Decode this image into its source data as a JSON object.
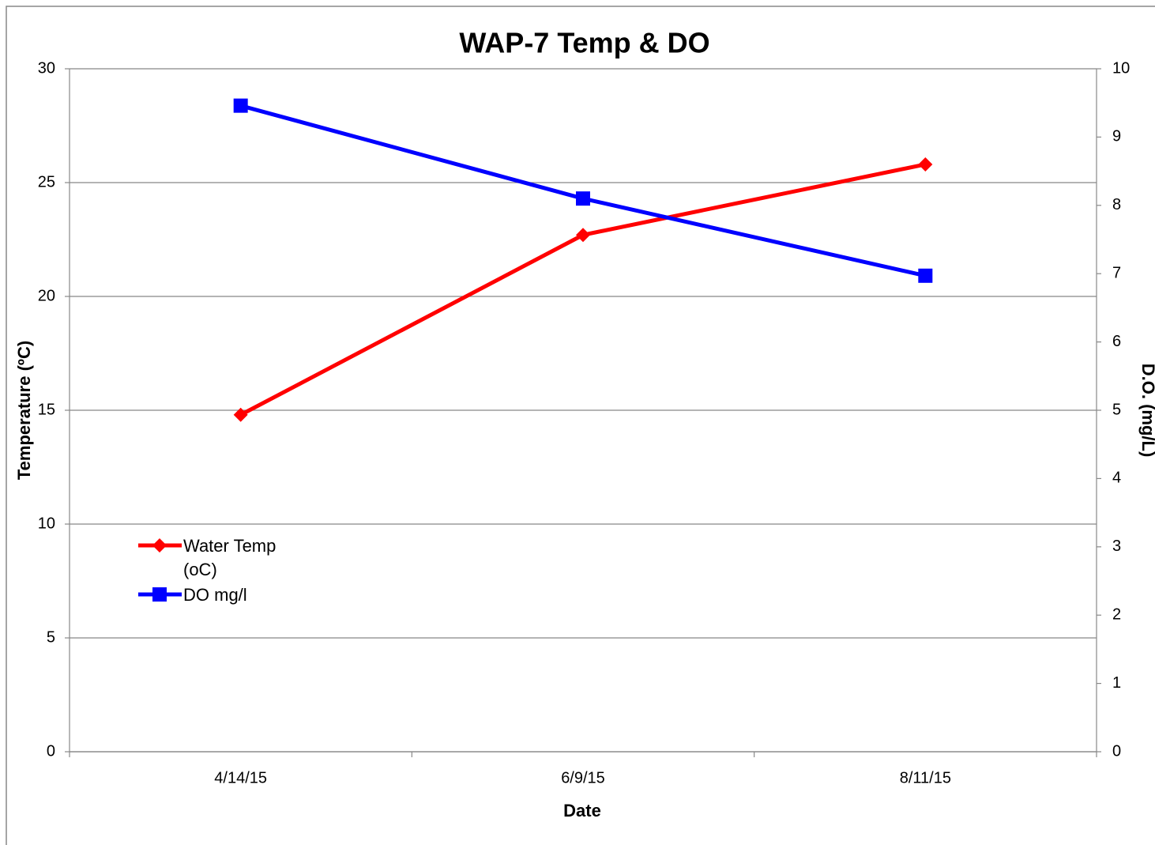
{
  "chart_data": {
    "type": "line",
    "title": "WAP-7 Temp & DO",
    "x_label": "Date",
    "y_label": "Temperature (ºC)",
    "y2_label": "D.O. (mg/L)",
    "categories": [
      "4/14/15",
      "6/9/15",
      "8/11/15"
    ],
    "series": [
      {
        "name": "Water Temp (oC)",
        "color": "#ff0000",
        "marker": "diamond",
        "values": [
          14.8,
          22.7,
          25.8
        ]
      },
      {
        "name": "DO mg/l",
        "color": "#0000ff",
        "marker": "square",
        "axis": "y2",
        "values": [
          9.46,
          8.1,
          6.97
        ]
      }
    ],
    "ylim": [
      0,
      30
    ],
    "yticks": [
      0,
      5,
      10,
      15,
      20,
      25,
      30
    ],
    "y2lim": [
      0,
      10
    ],
    "y2ticks": [
      0,
      1,
      2,
      3,
      4,
      5,
      6,
      7,
      8,
      9,
      10
    ],
    "grid": true
  }
}
